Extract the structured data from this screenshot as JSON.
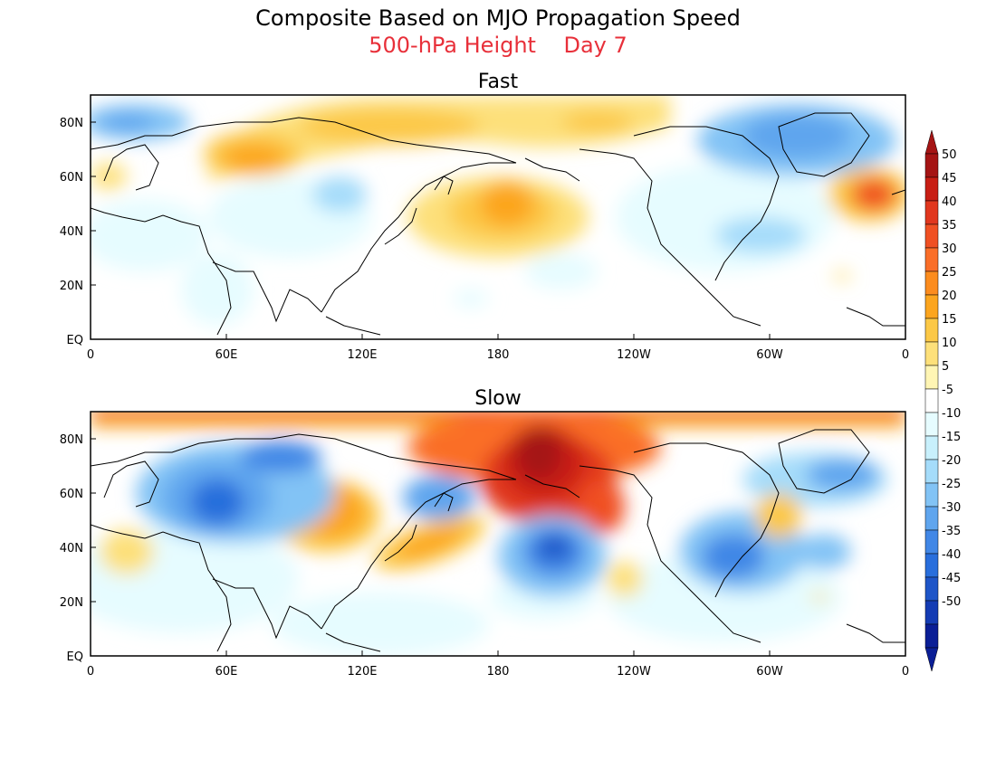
{
  "title": "Composite Based on MJO Propagation Speed",
  "subtitle": {
    "field": "500-hPa Height",
    "day": "Day 7"
  },
  "panels": [
    {
      "id": "fast",
      "title": "Fast"
    },
    {
      "id": "slow",
      "title": "Slow"
    }
  ],
  "axes": {
    "x_ticks": [
      "0",
      "60E",
      "120E",
      "180",
      "120W",
      "60W",
      "0"
    ],
    "y_ticks": [
      "EQ",
      "20N",
      "40N",
      "60N",
      "80N"
    ]
  },
  "colorbar": {
    "levels": [
      "50",
      "45",
      "40",
      "35",
      "30",
      "25",
      "20",
      "15",
      "10",
      "5",
      "-5",
      "-10",
      "-15",
      "-20",
      "-25",
      "-30",
      "-35",
      "-40",
      "-45",
      "-50"
    ],
    "colors": [
      "#a51414",
      "#c81e14",
      "#e1371e",
      "#f05023",
      "#fa6e28",
      "#fc8c1e",
      "#fca51e",
      "#fcc846",
      "#fde07a",
      "#fff5b4",
      "#ffffff",
      "#e6fcff",
      "#c8f0fc",
      "#a5dcfa",
      "#82c3f5",
      "#5fa5ee",
      "#4187e6",
      "#286edc",
      "#1e55c8",
      "#143cb4",
      "#0a1e96"
    ],
    "end_colors": {
      "top": "#a51414",
      "bottom": "#0a1e96"
    }
  }
}
